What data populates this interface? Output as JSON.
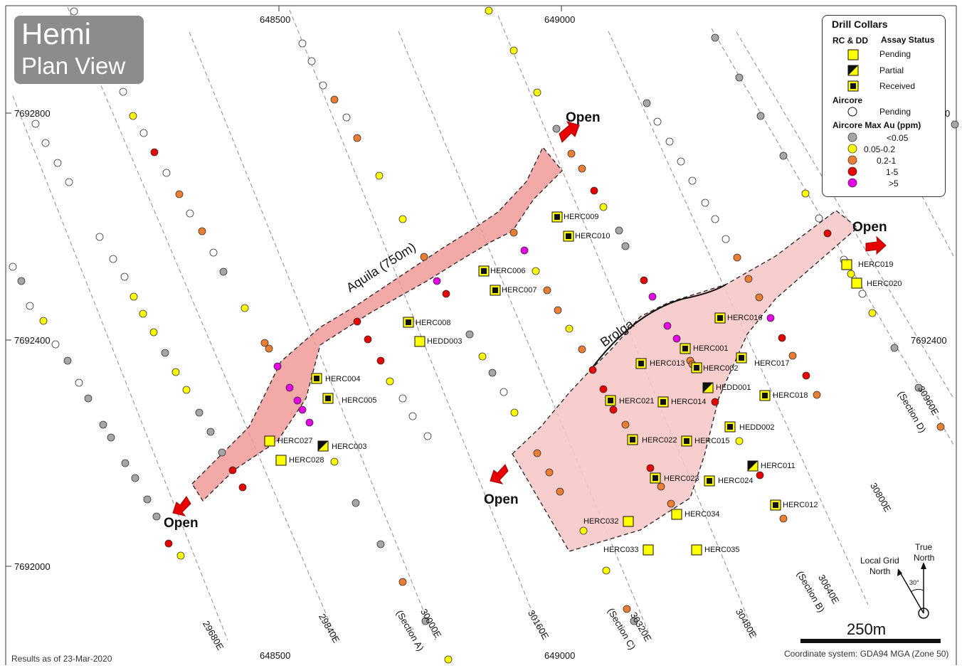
{
  "title": {
    "line1": "Hemi",
    "line2": "Plan View"
  },
  "legend": {
    "title": "Drill Collars",
    "rc_dd_header": "RC & DD",
    "assay_header": "Assay Status",
    "assay_items": [
      "Pending",
      "Partial",
      "Received"
    ],
    "aircore_header": "Aircore",
    "aircore_item": "Pending",
    "maxau_header": "Aircore Max Au (ppm)",
    "maxau_items": [
      {
        "label": "<0.05",
        "color": "#a6a6a6"
      },
      {
        "label": "0.05-0.2",
        "color": "#ffff00"
      },
      {
        "label": "0.2-1",
        "color": "#ed7d31"
      },
      {
        "label": "1-5",
        "color": "#e60000"
      },
      {
        "label": ">5",
        "color": "#e600e6"
      }
    ]
  },
  "grid": {
    "easting_labels": [
      "648500",
      "649000",
      "648500",
      "649000"
    ],
    "northing_labels": [
      "7692800",
      "7692400",
      "7692000",
      "7692400"
    ],
    "partial_right_label": "0"
  },
  "sections": [
    {
      "label": "29680E"
    },
    {
      "label": "29840E"
    },
    {
      "label": "30000E"
    },
    {
      "label": "(Section A)"
    },
    {
      "label": "30160E"
    },
    {
      "label": "30320E"
    },
    {
      "label": "(Section C)"
    },
    {
      "label": "30480E"
    },
    {
      "label": "30640E"
    },
    {
      "label": "(Section B)"
    },
    {
      "label": "30800E"
    },
    {
      "label": "30960E"
    },
    {
      "label": "(Section D)"
    }
  ],
  "zones": {
    "aquila": "Aquila (750m)",
    "brolga": "Brolga"
  },
  "open_label": "Open",
  "holes": [
    {
      "name": "HERC009",
      "status": "received"
    },
    {
      "name": "HERC010",
      "status": "received"
    },
    {
      "name": "HERC006",
      "status": "received"
    },
    {
      "name": "HERC007",
      "status": "received"
    },
    {
      "name": "HERC008",
      "status": "received"
    },
    {
      "name": "HEDD003",
      "status": "pending"
    },
    {
      "name": "HERC004",
      "status": "received"
    },
    {
      "name": "HERC005",
      "status": "received"
    },
    {
      "name": "HERC027",
      "status": "pending"
    },
    {
      "name": "HERC003",
      "status": "partial"
    },
    {
      "name": "HERC028",
      "status": "pending"
    },
    {
      "name": "HERC016",
      "status": "received"
    },
    {
      "name": "HERC001",
      "status": "received"
    },
    {
      "name": "HERC013",
      "status": "received"
    },
    {
      "name": "HERC002",
      "status": "received"
    },
    {
      "name": "HERC017",
      "status": "received"
    },
    {
      "name": "HEDD001",
      "status": "partial"
    },
    {
      "name": "HERC018",
      "status": "received"
    },
    {
      "name": "HERC021",
      "status": "received"
    },
    {
      "name": "HERC014",
      "status": "received"
    },
    {
      "name": "HEDD002",
      "status": "received"
    },
    {
      "name": "HERC022",
      "status": "received"
    },
    {
      "name": "HERC015",
      "status": "received"
    },
    {
      "name": "HERC011",
      "status": "partial"
    },
    {
      "name": "HERC023",
      "status": "received"
    },
    {
      "name": "HERC024",
      "status": "received"
    },
    {
      "name": "HERC012",
      "status": "received"
    },
    {
      "name": "HERC034",
      "status": "pending"
    },
    {
      "name": "HERC032",
      "status": "pending"
    },
    {
      "name": "HERC033",
      "status": "pending"
    },
    {
      "name": "HERC035",
      "status": "pending"
    },
    {
      "name": "HERC019",
      "status": "pending"
    },
    {
      "name": "HERC020",
      "status": "pending"
    }
  ],
  "north": {
    "true_line1": "True",
    "true_line2": "North",
    "local_line1": "Local Grid",
    "local_line2": "North",
    "angle": "30°"
  },
  "scale_label": "250m",
  "results_date": "Results as of 23-Mar-2020",
  "coord_system": "Coordinate system: GDA94 MGA (Zone 50)"
}
